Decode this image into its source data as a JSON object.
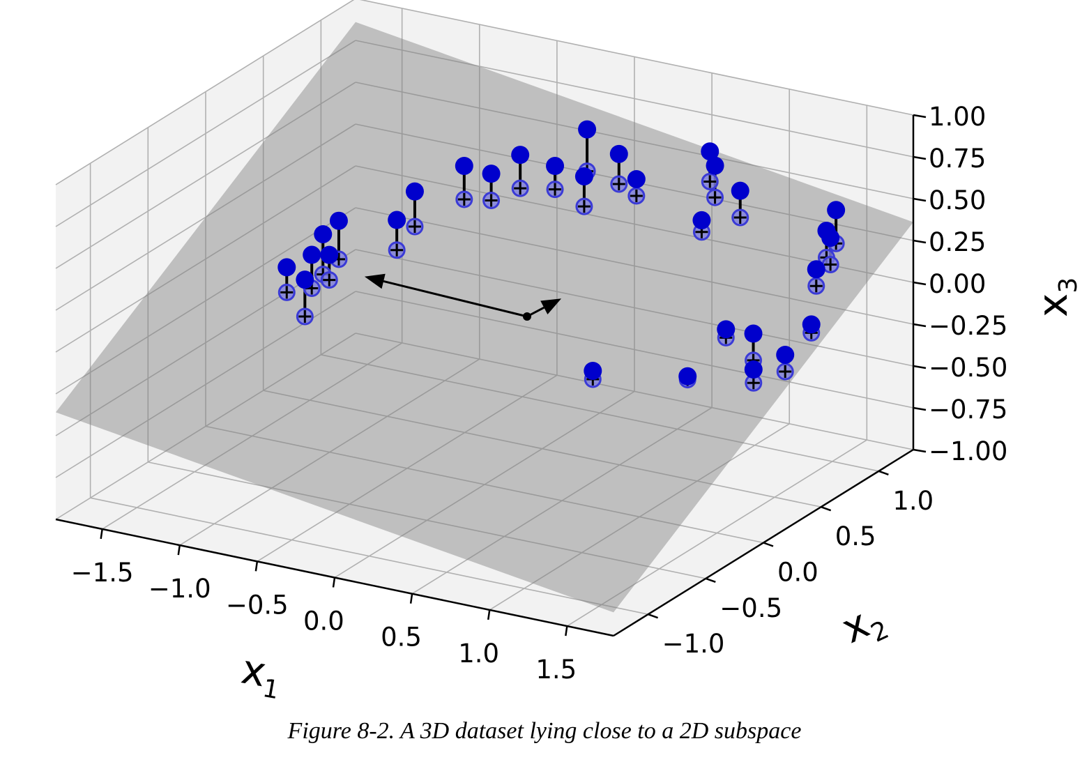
{
  "chart_data": {
    "type": "scatter",
    "projection": "3d",
    "grid": true,
    "caption": "Figure 8-2. A 3D dataset lying close to a 2D subspace",
    "axes": {
      "x": {
        "label": "x",
        "subscript": "1",
        "ticks": [
          "−1.5",
          "−1.0",
          "−0.5",
          "0.0",
          "0.5",
          "1.0",
          "1.5"
        ],
        "range": [
          -1.8,
          1.8
        ]
      },
      "y": {
        "label": "x",
        "subscript": "2",
        "ticks": [
          "−1.0",
          "−0.5",
          "0.0",
          "0.5",
          "1.0"
        ],
        "range": [
          -1.3,
          1.3
        ]
      },
      "z": {
        "label": "x",
        "subscript": "3",
        "ticks": [
          "−1.00",
          "−0.75",
          "−0.50",
          "−0.25",
          "0.00",
          "0.25",
          "0.50",
          "0.75",
          "1.00"
        ],
        "range": [
          -1.0,
          1.0
        ]
      }
    },
    "colors": {
      "original": "#0000cc",
      "projected_edge": "#3a3ad6",
      "projected_fill": "#8080e0",
      "marker": "#000000",
      "plane": "#808080",
      "pane": "#f2f2f2",
      "grid": "#b0b0b0"
    },
    "plane": {
      "corners": [
        [
          -1.8,
          -1.3,
          -0.36
        ],
        [
          1.8,
          -1.3,
          -0.86
        ],
        [
          1.8,
          1.3,
          0.36
        ],
        [
          -1.8,
          1.3,
          0.86
        ]
      ]
    },
    "basis_vectors": {
      "origin": [
        0.2,
        0.1,
        0.0
      ],
      "vectors": [
        [
          -0.9,
          -0.2,
          0.15
        ],
        [
          -0.3,
          0.7,
          -0.25
        ]
      ]
    },
    "series": [
      {
        "role": "original",
        "marker": "circle"
      },
      {
        "role": "projected",
        "marker": "plus"
      },
      {
        "role": "projection-line"
      }
    ],
    "points": [
      {
        "original": [
          -1.45,
          0.45,
          -0.1
        ],
        "projected": [
          -1.45,
          0.45,
          -0.3
        ]
      },
      {
        "original": [
          -1.4,
          0.48,
          0.02
        ],
        "projected": [
          -1.4,
          0.48,
          -0.22
        ]
      },
      {
        "original": [
          -1.3,
          0.4,
          -0.05
        ],
        "projected": [
          -1.3,
          0.4,
          -0.2
        ]
      },
      {
        "original": [
          -1.5,
          0.3,
          -0.12
        ],
        "projected": [
          -1.5,
          0.3,
          -0.27
        ]
      },
      {
        "original": [
          -1.35,
          0.55,
          0.08
        ],
        "projected": [
          -1.35,
          0.55,
          -0.15
        ]
      },
      {
        "original": [
          -1.42,
          0.35,
          -0.2
        ],
        "projected": [
          -1.42,
          0.35,
          -0.42
        ]
      },
      {
        "original": [
          -1.05,
          0.65,
          0.1
        ],
        "projected": [
          -1.05,
          0.65,
          -0.08
        ]
      },
      {
        "original": [
          -1.12,
          0.9,
          0.15
        ],
        "projected": [
          -1.12,
          0.9,
          -0.06
        ]
      },
      {
        "original": [
          -0.95,
          1.1,
          0.25
        ],
        "projected": [
          -0.95,
          1.1,
          0.05
        ]
      },
      {
        "original": [
          -0.85,
          1.2,
          0.18
        ],
        "projected": [
          -0.85,
          1.2,
          0.02
        ]
      },
      {
        "original": [
          -0.7,
          1.25,
          0.3
        ],
        "projected": [
          -0.7,
          1.25,
          0.1
        ]
      },
      {
        "original": [
          -0.55,
          1.35,
          0.22
        ],
        "projected": [
          -0.55,
          1.35,
          0.08
        ]
      },
      {
        "original": [
          -0.38,
          1.4,
          0.45
        ],
        "projected": [
          -0.38,
          1.4,
          0.2
        ]
      },
      {
        "original": [
          -0.25,
          1.2,
          0.28
        ],
        "projected": [
          -0.25,
          1.2,
          0.1
        ]
      },
      {
        "original": [
          -0.1,
          1.3,
          0.4
        ],
        "projected": [
          -0.1,
          1.3,
          0.22
        ]
      },
      {
        "original": [
          0.05,
          1.25,
          0.3
        ],
        "projected": [
          0.05,
          1.25,
          0.2
        ]
      },
      {
        "original": [
          0.45,
          1.35,
          0.5
        ],
        "projected": [
          0.45,
          1.35,
          0.32
        ]
      },
      {
        "original": [
          0.52,
          1.3,
          0.45
        ],
        "projected": [
          0.52,
          1.3,
          0.26
        ]
      },
      {
        "original": [
          0.62,
          1.05,
          0.25
        ],
        "projected": [
          0.62,
          1.05,
          0.18
        ]
      },
      {
        "original": [
          0.72,
          1.25,
          0.36
        ],
        "projected": [
          0.72,
          1.25,
          0.2
        ]
      },
      {
        "original": [
          1.05,
          0.35,
          -0.3
        ],
        "projected": [
          1.05,
          0.35,
          -0.32
        ]
      },
      {
        "original": [
          1.0,
          0.75,
          -0.2
        ],
        "projected": [
          1.0,
          0.75,
          -0.25
        ]
      },
      {
        "original": [
          0.55,
          0.2,
          -0.3
        ],
        "projected": [
          0.55,
          0.2,
          -0.35
        ]
      },
      {
        "original": [
          1.45,
          1.1,
          0.45
        ],
        "projected": [
          1.45,
          1.1,
          0.25
        ]
      },
      {
        "original": [
          1.5,
          0.95,
          0.4
        ],
        "projected": [
          1.5,
          0.95,
          0.24
        ]
      },
      {
        "original": [
          1.6,
          0.85,
          0.42
        ],
        "projected": [
          1.6,
          0.85,
          0.26
        ]
      },
      {
        "original": [
          1.62,
          0.7,
          0.3
        ],
        "projected": [
          1.62,
          0.7,
          0.2
        ]
      },
      {
        "original": [
          1.7,
          0.55,
          0.05
        ],
        "projected": [
          1.7,
          0.55,
          0.0
        ]
      },
      {
        "original": [
          1.68,
          0.35,
          -0.05
        ],
        "projected": [
          1.68,
          0.35,
          -0.15
        ]
      },
      {
        "original": [
          1.55,
          0.25,
          -0.12
        ],
        "projected": [
          1.55,
          0.25,
          -0.2
        ]
      },
      {
        "original": [
          1.4,
          0.45,
          -0.02
        ],
        "projected": [
          1.4,
          0.45,
          -0.18
        ]
      }
    ]
  }
}
